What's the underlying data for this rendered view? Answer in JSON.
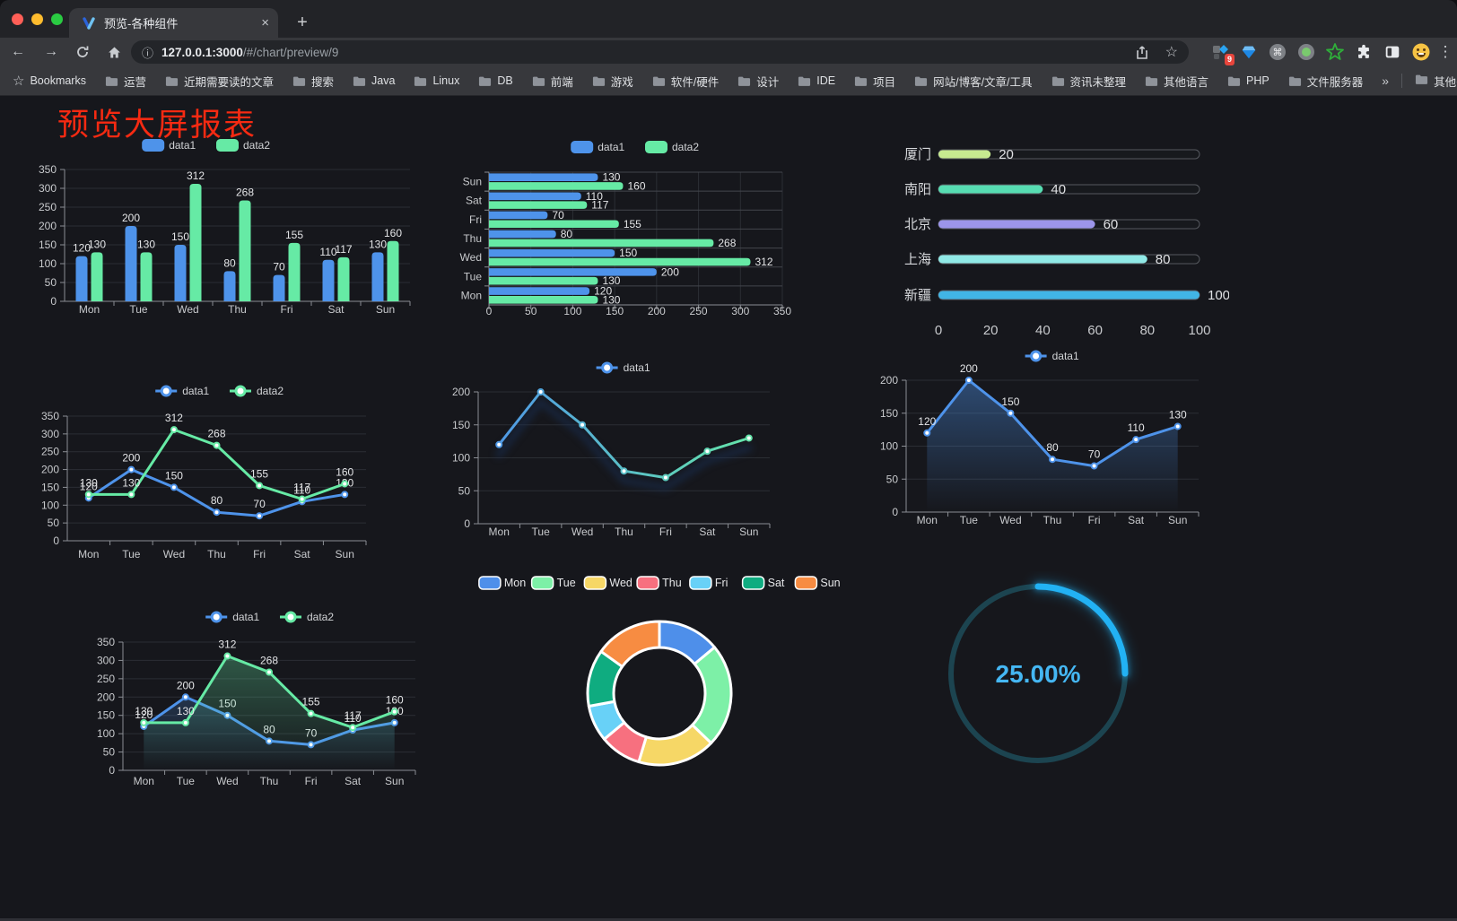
{
  "browser": {
    "tab_title": "预览-各种组件",
    "tab_close": "×",
    "new_tab": "+",
    "url": {
      "host": "127.0.0.1:3000",
      "path": "/#/chart/preview/9"
    },
    "icons": {
      "back": "←",
      "forward": "→",
      "info": "ⓘ",
      "star": "☆",
      "menu_dots": "⋮",
      "command": "⌘"
    },
    "extension_badge": "9",
    "bookmarks": {
      "label": "Bookmarks",
      "folders": [
        "运营",
        "近期需要读的文章",
        "搜索",
        "Java",
        "Linux",
        "DB",
        "前端",
        "游戏",
        "软件/硬件",
        "设计",
        "IDE",
        "项目",
        "网站/博客/文章/工具",
        "资讯未整理",
        "其他语言",
        "PHP",
        "文件服务器"
      ],
      "overflow": "»",
      "other": "其他书签"
    }
  },
  "page": {
    "title": "预览大屏报表",
    "title_color": "#F62A12",
    "background": "#16171C"
  },
  "chart_data": [
    {
      "id": "grouped-bar-chart",
      "type": "bar",
      "categories": [
        "Mon",
        "Tue",
        "Wed",
        "Thu",
        "Fri",
        "Sat",
        "Sun"
      ],
      "series": [
        {
          "name": "data1",
          "color": "#4E93EA",
          "values": [
            120,
            200,
            150,
            80,
            70,
            110,
            130
          ]
        },
        {
          "name": "data2",
          "color": "#66EAA5",
          "values": [
            130,
            130,
            312,
            268,
            155,
            117,
            160
          ]
        }
      ],
      "ylim": [
        0,
        350
      ],
      "yticks": [
        0,
        50,
        100,
        150,
        200,
        250,
        300,
        350
      ],
      "legend_position": "top",
      "grid": true,
      "show_labels": true
    },
    {
      "id": "horizontal-bar-chart",
      "type": "bar-horizontal",
      "categories_top_to_bottom": [
        "Sun",
        "Sat",
        "Fri",
        "Thu",
        "Wed",
        "Tue",
        "Mon"
      ],
      "series": [
        {
          "name": "data1",
          "color": "#4E93EA",
          "values": [
            130,
            110,
            70,
            80,
            150,
            200,
            120
          ]
        },
        {
          "name": "data2",
          "color": "#66EAA5",
          "values": [
            160,
            117,
            155,
            268,
            312,
            130,
            130
          ]
        }
      ],
      "xlim": [
        0,
        350
      ],
      "xticks": [
        0,
        50,
        100,
        150,
        200,
        250,
        300,
        350
      ],
      "legend_position": "top",
      "show_labels": true
    },
    {
      "id": "capsule-bar-chart",
      "type": "capsule",
      "rows": [
        {
          "label": "厦门",
          "value": 20,
          "color": "#C7EA90"
        },
        {
          "label": "南阳",
          "value": 40,
          "color": "#57DDB2"
        },
        {
          "label": "北京",
          "value": 60,
          "color": "#9C95EA"
        },
        {
          "label": "上海",
          "value": 80,
          "color": "#90E9E6"
        },
        {
          "label": "新疆",
          "value": 100,
          "color": "#41B5E5"
        }
      ],
      "xlim": [
        0,
        100
      ],
      "xticks": [
        0,
        20,
        40,
        60,
        80,
        100
      ]
    },
    {
      "id": "dual-line-chart",
      "type": "line",
      "categories": [
        "Mon",
        "Tue",
        "Wed",
        "Thu",
        "Fri",
        "Sat",
        "Sun"
      ],
      "series": [
        {
          "name": "data1",
          "color": "#4E93EA",
          "values": [
            120,
            200,
            150,
            80,
            70,
            110,
            130
          ]
        },
        {
          "name": "data2",
          "color": "#66EAA5",
          "values": [
            130,
            130,
            312,
            268,
            155,
            117,
            160
          ]
        }
      ],
      "ylim": [
        0,
        350
      ],
      "yticks": [
        0,
        50,
        100,
        150,
        200,
        250,
        300,
        350
      ],
      "show_labels": true
    },
    {
      "id": "gradient-line-chart",
      "type": "line",
      "categories": [
        "Mon",
        "Tue",
        "Wed",
        "Thu",
        "Fri",
        "Sat",
        "Sun"
      ],
      "series": [
        {
          "name": "data1",
          "color": "#4E93EA",
          "gradient": [
            "#4E93EA",
            "#66EAA5"
          ],
          "values": [
            120,
            200,
            150,
            80,
            70,
            110,
            130
          ]
        }
      ],
      "ylim": [
        0,
        200
      ],
      "yticks": [
        0,
        50,
        100,
        150,
        200
      ],
      "show_labels": false,
      "shadow": true
    },
    {
      "id": "area-line-chart",
      "type": "line",
      "categories": [
        "Mon",
        "Tue",
        "Wed",
        "Thu",
        "Fri",
        "Sat",
        "Sun"
      ],
      "series": [
        {
          "name": "data1",
          "color": "#4E93EA",
          "area": "rgba(78,147,234,0.42)",
          "values": [
            120,
            200,
            150,
            80,
            70,
            110,
            130
          ]
        }
      ],
      "ylim": [
        0,
        200
      ],
      "yticks": [
        0,
        50,
        100,
        150,
        200
      ],
      "show_labels": true
    },
    {
      "id": "dual-area-line-chart",
      "type": "line",
      "categories": [
        "Mon",
        "Tue",
        "Wed",
        "Thu",
        "Fri",
        "Sat",
        "Sun"
      ],
      "series": [
        {
          "name": "data1",
          "color": "#4E93EA",
          "area": "rgba(78,147,234,0.40)",
          "values": [
            120,
            200,
            150,
            80,
            70,
            110,
            130
          ]
        },
        {
          "name": "data2",
          "color": "#66EAA5",
          "area": "rgba(102,234,165,0.35)",
          "values": [
            130,
            130,
            312,
            268,
            155,
            117,
            160
          ]
        }
      ],
      "ylim": [
        0,
        350
      ],
      "yticks": [
        0,
        50,
        100,
        150,
        200,
        250,
        300,
        350
      ],
      "show_labels": true
    },
    {
      "id": "donut-chart",
      "type": "pie",
      "inner_radius_ratio": 0.64,
      "legend_position": "top",
      "items": [
        {
          "label": "Mon",
          "value": 120,
          "color": "#4E8FEA"
        },
        {
          "label": "Tue",
          "value": 200,
          "color": "#7DF0A7"
        },
        {
          "label": "Wed",
          "value": 150,
          "color": "#F6D766"
        },
        {
          "label": "Thu",
          "value": 80,
          "color": "#F7707F"
        },
        {
          "label": "Fri",
          "value": 70,
          "color": "#68D1F7"
        },
        {
          "label": "Sat",
          "value": 110,
          "color": "#0FAC80"
        },
        {
          "label": "Sun",
          "value": 130,
          "color": "#F78C42"
        }
      ]
    },
    {
      "id": "gauge-chart",
      "type": "gauge",
      "value": 25,
      "max": 100,
      "label": "25.00%",
      "progress_color": "#22B2F4",
      "track_color": "#1C4450",
      "text_color": "#45B7F3"
    }
  ]
}
